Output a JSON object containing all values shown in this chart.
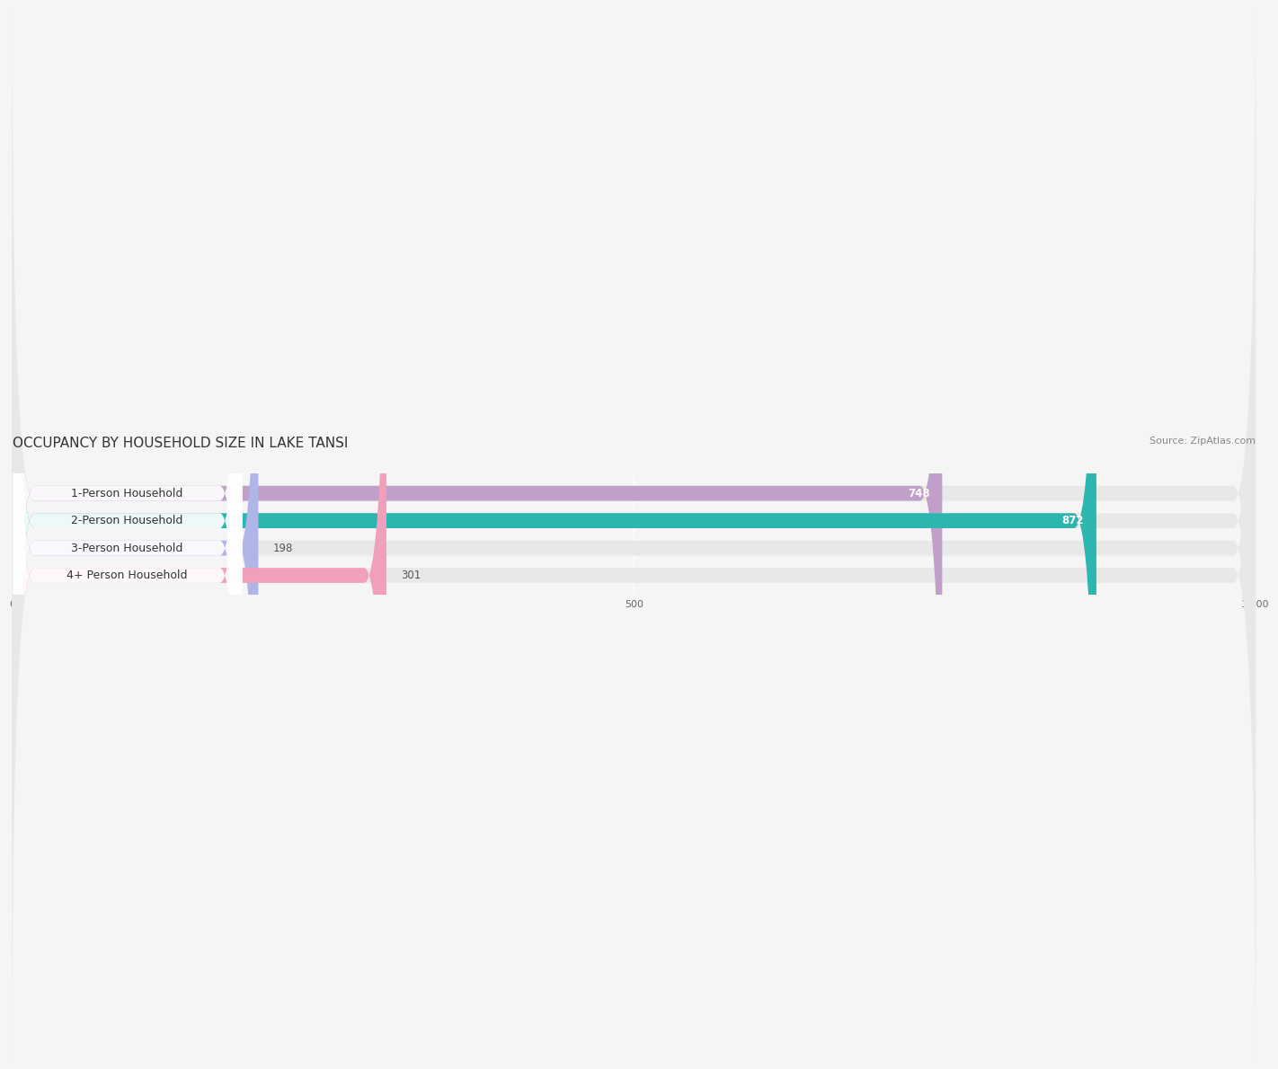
{
  "title": "OCCUPANCY BY HOUSEHOLD SIZE IN LAKE TANSI",
  "source": "Source: ZipAtlas.com",
  "categories": [
    "1-Person Household",
    "2-Person Household",
    "3-Person Household",
    "4+ Person Household"
  ],
  "values": [
    748,
    872,
    198,
    301
  ],
  "bar_colors": [
    "#c09fc9",
    "#2db5b0",
    "#b0b5e8",
    "#f0a0bb"
  ],
  "xlim": [
    0,
    1000
  ],
  "xticks": [
    0,
    500,
    1000
  ],
  "xtick_labels": [
    "0",
    "500",
    "1,000"
  ],
  "background_color": "#f5f5f5",
  "bar_bg_color": "#e8e8e8",
  "label_box_color": "#ffffff",
  "title_fontsize": 11,
  "source_fontsize": 8,
  "label_fontsize": 9,
  "value_fontsize": 8.5,
  "bar_height": 0.55,
  "value_threshold": 400
}
